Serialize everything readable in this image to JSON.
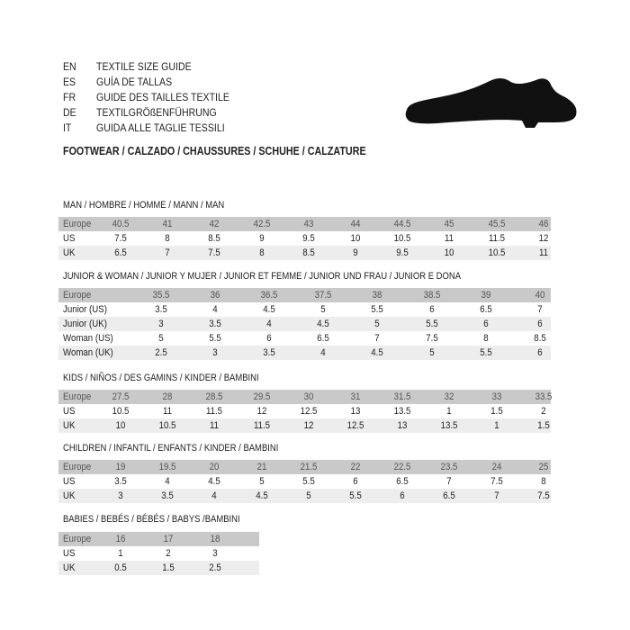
{
  "header": {
    "languages": [
      {
        "code": "EN",
        "text": "TEXTILE SIZE GUIDE"
      },
      {
        "code": "ES",
        "text": "GUÍA DE TALLAS"
      },
      {
        "code": "FR",
        "text": "GUIDE DES TAILLES TEXTILE"
      },
      {
        "code": "DE",
        "text": "TEXTILGRÖßENFÜHRUNG"
      },
      {
        "code": "IT",
        "text": "GUIDA ALLE TAGLIE TESSILI"
      }
    ],
    "footwear": "FOOTWEAR / CALZADO / CHAUSSURES / SCHUHE / CALZATURE",
    "image_icon": "shoe-icon"
  },
  "colors": {
    "header_row": "#c9c9c9",
    "alt_row": "#ededed"
  },
  "sections": [
    {
      "title": "MAN / HOMBRE / HOMME / MANN / MAN",
      "rows": [
        {
          "label": "Europe",
          "values": [
            "40.5",
            "41",
            "42",
            "42.5",
            "43",
            "44",
            "44.5",
            "45",
            "45.5",
            "46"
          ]
        },
        {
          "label": "US",
          "values": [
            "7.5",
            "8",
            "8.5",
            "9",
            "9.5",
            "10",
            "10.5",
            "11",
            "11.5",
            "12"
          ]
        },
        {
          "label": "UK",
          "values": [
            "6.5",
            "7",
            "7.5",
            "8",
            "8.5",
            "9",
            "9.5",
            "10",
            "10.5",
            "11"
          ]
        }
      ]
    },
    {
      "title": "JUNIOR & WOMAN / JUNIOR Y MUJER / JUNIOR ET FEMME / JUNIOR UND FRAU / JUNIOR E DONA",
      "rows": [
        {
          "label": "Europe",
          "values": [
            "35.5",
            "36",
            "36.5",
            "37.5",
            "38",
            "38.5",
            "39",
            "40"
          ]
        },
        {
          "label": "Junior (US)",
          "values": [
            "3.5",
            "4",
            "4.5",
            "5",
            "5.5",
            "6",
            "6.5",
            "7"
          ]
        },
        {
          "label": "Junior (UK)",
          "values": [
            "3",
            "3.5",
            "4",
            "4.5",
            "5",
            "5.5",
            "6",
            "6"
          ]
        },
        {
          "label": "Woman (US)",
          "values": [
            "5",
            "5.5",
            "6",
            "6.5",
            "7",
            "7.5",
            "8",
            "8.5"
          ]
        },
        {
          "label": "Woman (UK)",
          "values": [
            "2.5",
            "3",
            "3.5",
            "4",
            "4.5",
            "5",
            "5.5",
            "6"
          ]
        }
      ]
    },
    {
      "title": "KIDS / NIÑOS / DES GAMINS / KINDER / BAMBINI",
      "rows": [
        {
          "label": "Europe",
          "values": [
            "27.5",
            "28",
            "28.5",
            "29.5",
            "30",
            "31",
            "31.5",
            "32",
            "33",
            "33.5"
          ]
        },
        {
          "label": "US",
          "values": [
            "10.5",
            "11",
            "11.5",
            "12",
            "12.5",
            "13",
            "13.5",
            "1",
            "1.5",
            "2"
          ]
        },
        {
          "label": "UK",
          "values": [
            "10",
            "10.5",
            "11",
            "11.5",
            "12",
            "12.5",
            "13",
            "13.5",
            "1",
            "1.5"
          ]
        }
      ]
    },
    {
      "title": "CHILDREN / INFANTIL / ENFANTS / KINDER / BAMBINI",
      "rows": [
        {
          "label": "Europe",
          "values": [
            "19",
            "19.5",
            "20",
            "21",
            "21.5",
            "22",
            "22.5",
            "23.5",
            "24",
            "25"
          ]
        },
        {
          "label": "US",
          "values": [
            "3.5",
            "4",
            "4.5",
            "5",
            "5.5",
            "6",
            "6.5",
            "7",
            "7.5",
            "8"
          ]
        },
        {
          "label": "UK",
          "values": [
            "3",
            "3.5",
            "4",
            "4.5",
            "5",
            "5.5",
            "6",
            "6.5",
            "7",
            "7.5"
          ]
        }
      ]
    },
    {
      "title": "BABIES  / BEBÉS / BÉBÉS / BABYS /BAMBINI",
      "rows": [
        {
          "label": "Europe",
          "values": [
            "16",
            "17",
            "18"
          ]
        },
        {
          "label": "US",
          "values": [
            "1",
            "2",
            "3"
          ]
        },
        {
          "label": "UK",
          "values": [
            "0.5",
            "1.5",
            "2.5"
          ]
        }
      ]
    }
  ]
}
